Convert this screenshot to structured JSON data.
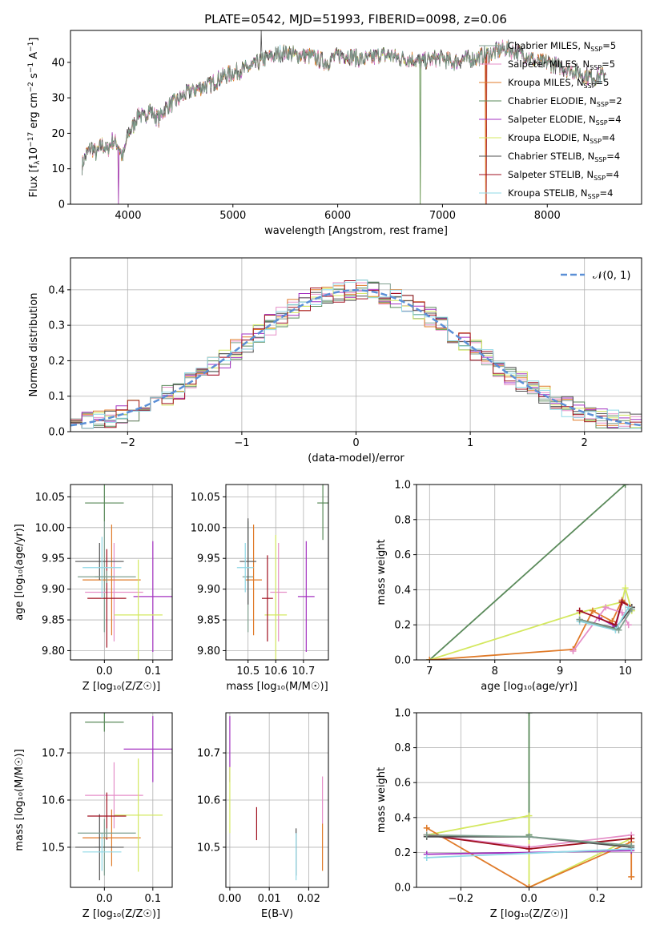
{
  "figure_title": "PLATE=0542, MJD=51993, FIBERID=0098, z=0.06",
  "colors": {
    "Chabrier MILES": "#7f9f8f",
    "Salpeter MILES": "#e58fc8",
    "Kroupa MILES": "#e07b2a",
    "Chabrier ELODIE": "#5a8a5a",
    "Salpeter ELODIE": "#a330c0",
    "Kroupa ELODIE": "#d4e860",
    "Chabrier STELIB": "#505050",
    "Salpeter STELIB": "#a01020",
    "Kroupa STELIB": "#8fd8e6",
    "gaussian": "#5b8fd6"
  },
  "chart_data": [
    {
      "id": "spectrum",
      "type": "line",
      "title": "PLATE=0542, MJD=51993, FIBERID=0098, z=0.06",
      "xlabel": "wavelength [Angstrom, rest frame]",
      "ylabel_parts": [
        "Flux [f",
        "λ",
        "10",
        "−17",
        " erg cm",
        "−2",
        " s",
        "−1",
        " A",
        "−1",
        "]"
      ],
      "xlim": [
        3450,
        8900
      ],
      "ylim": [
        0,
        49
      ],
      "xticks": [
        4000,
        5000,
        6000,
        7000,
        8000
      ],
      "yticks": [
        0,
        10,
        20,
        30,
        40
      ],
      "grid": false,
      "legend_position": "upper-right",
      "legend": [
        {
          "name": "Chabrier MILES",
          "n": "5"
        },
        {
          "name": "Salpeter MILES",
          "n": "5"
        },
        {
          "name": "Kroupa MILES",
          "n": "5"
        },
        {
          "name": "Chabrier ELODIE",
          "n": "2"
        },
        {
          "name": "Salpeter ELODIE",
          "n": "4"
        },
        {
          "name": "Kroupa ELODIE",
          "n": "4"
        },
        {
          "name": "Chabrier STELIB",
          "n": "4"
        },
        {
          "name": "Salpeter STELIB",
          "n": "4"
        },
        {
          "name": "Kroupa STELIB",
          "n": "4"
        }
      ],
      "spectrum_x": [
        3560,
        3600,
        3650,
        3700,
        3750,
        3800,
        3850,
        3900,
        3950,
        4000,
        4050,
        4100,
        4150,
        4200,
        4250,
        4300,
        4350,
        4400,
        4450,
        4500,
        4600,
        4700,
        4800,
        4900,
        5000,
        5100,
        5200,
        5300,
        5400,
        5500,
        5600,
        5700,
        5800,
        5900,
        6000,
        6100,
        6200,
        6300,
        6400,
        6500,
        6600,
        6700,
        6800,
        6900,
        7000,
        7100,
        7200,
        7300,
        7400,
        7500,
        7600,
        7700,
        7800,
        7900,
        8000,
        8100,
        8200,
        8300,
        8400,
        8500,
        8560
      ],
      "spectrum_y": [
        11,
        14,
        16,
        14,
        17,
        15,
        18,
        17,
        13,
        20,
        22,
        26,
        24,
        27,
        25,
        24,
        27,
        28,
        29,
        30,
        32,
        33,
        34,
        36,
        37,
        38,
        39,
        41,
        42,
        43,
        42,
        42,
        41,
        40,
        42,
        42,
        41,
        41,
        42,
        42,
        41,
        41,
        40,
        41,
        41,
        40,
        41,
        41,
        42,
        43,
        44,
        43,
        42,
        40,
        40,
        39,
        38,
        37,
        36,
        36,
        37
      ]
    },
    {
      "id": "residuals",
      "type": "step-histogram",
      "xlabel": "(data-model)/error",
      "ylabel": "Normed distribution",
      "xlim": [
        -2.5,
        2.5
      ],
      "ylim": [
        0,
        0.49
      ],
      "xticks": [
        -2,
        -1,
        0,
        1,
        2
      ],
      "yticks": [
        0.0,
        0.1,
        0.2,
        0.3,
        0.4
      ],
      "grid": true,
      "legend_position": "upper-right",
      "legend": [
        {
          "name": "N(0,1)",
          "display": "𝒩(0, 1)"
        }
      ],
      "gaussian": {
        "mean": 0,
        "sigma": 1
      }
    },
    {
      "id": "age_vs_Z",
      "type": "errorbar",
      "xlabel": "Z [log₁₀(Z/Z☉)]",
      "ylabel": "age  [log₁₀(age/yr)]",
      "xlim": [
        -0.07,
        0.14
      ],
      "ylim": [
        9.785,
        10.07
      ],
      "xticks": [
        0.0,
        0.1
      ],
      "yticks": [
        9.8,
        9.85,
        9.9,
        9.95,
        10.0,
        10.05
      ],
      "grid": true,
      "points": [
        {
          "series": "Chabrier MILES",
          "x": 0.0,
          "y": 9.92,
          "xerr": 0.02,
          "yerr": 0.09
        },
        {
          "series": "Salpeter MILES",
          "x": 0.02,
          "y": 9.895,
          "xerr": 0.06,
          "yerr": 0.08
        },
        {
          "series": "Kroupa MILES",
          "x": 0.015,
          "y": 9.915,
          "xerr": 0.06,
          "yerr": 0.09
        },
        {
          "series": "Chabrier ELODIE",
          "x": 0.0,
          "y": 10.04,
          "xerr": 0.04,
          "yerr": 0.03
        },
        {
          "series": "Salpeter ELODIE",
          "x": 0.1,
          "y": 9.888,
          "xerr": 0.04,
          "yerr": 0.09
        },
        {
          "series": "Kroupa ELODIE",
          "x": 0.07,
          "y": 9.858,
          "xerr": 0.05,
          "yerr": 0.09
        },
        {
          "series": "Chabrier STELIB",
          "x": -0.01,
          "y": 9.945,
          "xerr": 0.05,
          "yerr": 0.03
        },
        {
          "series": "Salpeter STELIB",
          "x": 0.005,
          "y": 9.885,
          "xerr": 0.04,
          "yerr": 0.08
        },
        {
          "series": "Kroupa STELIB",
          "x": -0.005,
          "y": 9.935,
          "xerr": 0.04,
          "yerr": 0.05
        },
        {
          "series": "Chabrier MILES",
          "x": 0.005,
          "y": 9.92,
          "xerr": 0.06,
          "yerr": 0.01
        }
      ]
    },
    {
      "id": "age_vs_mass",
      "type": "errorbar",
      "xlabel": "mass [log₁₀(M/M☉)]",
      "ylabel": "",
      "xlim": [
        10.42,
        10.79
      ],
      "ylim": [
        9.785,
        10.07
      ],
      "xticks": [
        10.5,
        10.6,
        10.7
      ],
      "yticks": [
        9.8,
        9.85,
        9.9,
        9.95,
        10.0,
        10.05
      ],
      "grid": true,
      "points": [
        {
          "series": "Chabrier MILES",
          "x": 10.5,
          "y": 9.92,
          "xerr": 0.02,
          "yerr": 0.09
        },
        {
          "series": "Salpeter MILES",
          "x": 10.61,
          "y": 9.895,
          "xerr": 0.03,
          "yerr": 0.08
        },
        {
          "series": "Kroupa MILES",
          "x": 10.52,
          "y": 9.915,
          "xerr": 0.03,
          "yerr": 0.09
        },
        {
          "series": "Chabrier ELODIE",
          "x": 10.77,
          "y": 10.04,
          "xerr": 0.02,
          "yerr": 0.06
        },
        {
          "series": "Salpeter ELODIE",
          "x": 10.71,
          "y": 9.888,
          "xerr": 0.03,
          "yerr": 0.09
        },
        {
          "series": "Kroupa ELODIE",
          "x": 10.6,
          "y": 9.858,
          "xerr": 0.04,
          "yerr": 0.13
        },
        {
          "series": "Chabrier STELIB",
          "x": 10.5,
          "y": 9.945,
          "xerr": 0.03,
          "yerr": 0.07
        },
        {
          "series": "Salpeter STELIB",
          "x": 10.57,
          "y": 9.885,
          "xerr": 0.02,
          "yerr": 0.07
        },
        {
          "series": "Kroupa STELIB",
          "x": 10.49,
          "y": 9.935,
          "xerr": 0.03,
          "yerr": 0.04
        }
      ]
    },
    {
      "id": "weight_vs_age",
      "type": "line",
      "xlabel": "age  [log₁₀(age/yr)]",
      "ylabel": "mass weight",
      "xlim": [
        6.8,
        10.25
      ],
      "ylim": [
        0,
        1.0
      ],
      "xticks": [
        7,
        8,
        9,
        10
      ],
      "yticks": [
        0.0,
        0.2,
        0.4,
        0.6,
        0.8,
        1.0
      ],
      "grid": true,
      "series": [
        {
          "name": "Chabrier ELODIE",
          "x": [
            7.0,
            10.0
          ],
          "y": [
            0.0,
            1.0
          ]
        },
        {
          "name": "Kroupa ELODIE",
          "x": [
            7.0,
            9.3,
            9.95,
            10.0,
            10.1
          ],
          "y": [
            0.0,
            0.27,
            0.33,
            0.41,
            0.28
          ]
        },
        {
          "name": "Kroupa MILES",
          "x": [
            7.0,
            9.2,
            9.5,
            9.8,
            9.95,
            10.1
          ],
          "y": [
            0.0,
            0.06,
            0.28,
            0.22,
            0.34,
            0.3
          ]
        },
        {
          "name": "Salpeter MILES",
          "x": [
            9.2,
            9.7,
            9.95,
            10.05
          ],
          "y": [
            0.05,
            0.3,
            0.27,
            0.2
          ]
        },
        {
          "name": "Salpeter ELODIE",
          "x": [
            9.6,
            9.85,
            9.95,
            10.1
          ],
          "y": [
            0.24,
            0.19,
            0.33,
            0.3
          ]
        },
        {
          "name": "Salpeter STELIB",
          "x": [
            9.3,
            9.85,
            9.95,
            10.1
          ],
          "y": [
            0.28,
            0.2,
            0.33,
            0.3
          ]
        },
        {
          "name": "Chabrier STELIB",
          "x": [
            9.3,
            9.85,
            10.1
          ],
          "y": [
            0.23,
            0.18,
            0.3
          ]
        },
        {
          "name": "Kroupa STELIB",
          "x": [
            9.3,
            9.85,
            10.05
          ],
          "y": [
            0.22,
            0.17,
            0.3
          ]
        },
        {
          "name": "Chabrier MILES",
          "x": [
            9.3,
            9.9,
            10.1
          ],
          "y": [
            0.23,
            0.17,
            0.29
          ]
        }
      ]
    },
    {
      "id": "mass_vs_Z",
      "type": "errorbar",
      "xlabel": "Z [log₁₀(Z/Z☉)]",
      "ylabel": "mass [log₁₀(M/M☉)]",
      "xlim": [
        -0.07,
        0.14
      ],
      "ylim": [
        10.415,
        10.785
      ],
      "xticks": [
        0.0,
        0.1
      ],
      "yticks": [
        10.5,
        10.6,
        10.7
      ],
      "grid": true,
      "points": [
        {
          "series": "Chabrier MILES",
          "x": 0.0,
          "y": 10.5,
          "xerr": 0.02,
          "yerr": 0.06
        },
        {
          "series": "Salpeter MILES",
          "x": 0.02,
          "y": 10.61,
          "xerr": 0.06,
          "yerr": 0.07
        },
        {
          "series": "Kroupa MILES",
          "x": 0.015,
          "y": 10.52,
          "xerr": 0.06,
          "yerr": 0.06
        },
        {
          "series": "Chabrier ELODIE",
          "x": 0.0,
          "y": 10.765,
          "xerr": 0.04,
          "yerr": 0.02
        },
        {
          "series": "Salpeter ELODIE",
          "x": 0.1,
          "y": 10.708,
          "xerr": 0.06,
          "yerr": 0.07
        },
        {
          "series": "Kroupa ELODIE",
          "x": 0.07,
          "y": 10.568,
          "xerr": 0.05,
          "yerr": 0.12
        },
        {
          "series": "Chabrier STELIB",
          "x": -0.01,
          "y": 10.5,
          "xerr": 0.05,
          "yerr": 0.07
        },
        {
          "series": "Salpeter STELIB",
          "x": 0.005,
          "y": 10.566,
          "xerr": 0.04,
          "yerr": 0.05
        },
        {
          "series": "Kroupa STELIB",
          "x": -0.005,
          "y": 10.49,
          "xerr": 0.04,
          "yerr": 0.04
        },
        {
          "series": "Chabrier MILES",
          "x": 0.005,
          "y": 10.53,
          "xerr": 0.06,
          "yerr": 0.01
        }
      ]
    },
    {
      "id": "mass_vs_EBV",
      "type": "errorbar",
      "xlabel": "E(B-V)",
      "ylabel": "",
      "xlim": [
        -0.001,
        0.025
      ],
      "ylim": [
        10.415,
        10.785
      ],
      "xticks": [
        0.0,
        0.01,
        0.02
      ],
      "yticks": [
        10.5,
        10.6,
        10.7
      ],
      "grid": true,
      "points": [
        {
          "series": "Salpeter ELODIE",
          "x": 0.0,
          "y": 10.708,
          "xerr": 0.0,
          "yerr": 0.07
        },
        {
          "series": "Kroupa ELODIE",
          "x": 0.0,
          "y": 10.6,
          "xerr": 0.0,
          "yerr": 0.07
        },
        {
          "series": "Salpeter STELIB",
          "x": 0.0068,
          "y": 10.55,
          "xerr": 0.0,
          "yerr": 0.035
        },
        {
          "series": "Chabrier STELIB",
          "x": 0.0168,
          "y": 10.49,
          "xerr": 0.0,
          "yerr": 0.05
        },
        {
          "series": "Kroupa STELIB",
          "x": 0.0168,
          "y": 10.48,
          "xerr": 0.0,
          "yerr": 0.05
        },
        {
          "series": "Salpeter MILES",
          "x": 0.0235,
          "y": 10.6,
          "xerr": 0.0,
          "yerr": 0.05
        },
        {
          "series": "Kroupa MILES",
          "x": 0.0235,
          "y": 10.5,
          "xerr": 0.0,
          "yerr": 0.05
        }
      ]
    },
    {
      "id": "weight_vs_Z",
      "type": "line",
      "xlabel": "Z [log₁₀(Z/Z☉)]",
      "ylabel": "mass weight",
      "xlim": [
        -0.33,
        0.33
      ],
      "ylim": [
        0,
        1.0
      ],
      "xticks": [
        -0.2,
        0.0,
        0.2
      ],
      "yticks": [
        0.0,
        0.2,
        0.4,
        0.6,
        0.8,
        1.0
      ],
      "grid": true,
      "series": [
        {
          "name": "Chabrier ELODIE",
          "x": [
            0.0,
            0.0,
            0.0
          ],
          "y": [
            0.3,
            1.0,
            0.3
          ]
        },
        {
          "name": "Kroupa ELODIE",
          "x": [
            -0.3,
            0.0,
            0.0,
            0.3
          ],
          "y": [
            0.3,
            0.41,
            0.0,
            0.28
          ]
        },
        {
          "name": "Kroupa MILES",
          "x": [
            -0.3,
            0.0,
            0.3,
            0.3
          ],
          "y": [
            0.34,
            0.0,
            0.26,
            0.06
          ]
        },
        {
          "name": "Salpeter MILES",
          "x": [
            -0.3,
            0.0,
            0.3
          ],
          "y": [
            0.3,
            0.23,
            0.3
          ]
        },
        {
          "name": "Salpeter ELODIE",
          "x": [
            -0.3,
            0.3
          ],
          "y": [
            0.19,
            0.21
          ]
        },
        {
          "name": "Salpeter STELIB",
          "x": [
            -0.3,
            0.0,
            0.3
          ],
          "y": [
            0.3,
            0.22,
            0.28
          ]
        },
        {
          "name": "Chabrier STELIB",
          "x": [
            -0.3,
            0.0,
            0.3
          ],
          "y": [
            0.29,
            0.29,
            0.23
          ]
        },
        {
          "name": "Kroupa STELIB",
          "x": [
            -0.3,
            0.3
          ],
          "y": [
            0.17,
            0.22
          ]
        },
        {
          "name": "Chabrier MILES",
          "x": [
            -0.3,
            0.0,
            0.3
          ],
          "y": [
            0.3,
            0.29,
            0.24
          ]
        }
      ]
    }
  ]
}
